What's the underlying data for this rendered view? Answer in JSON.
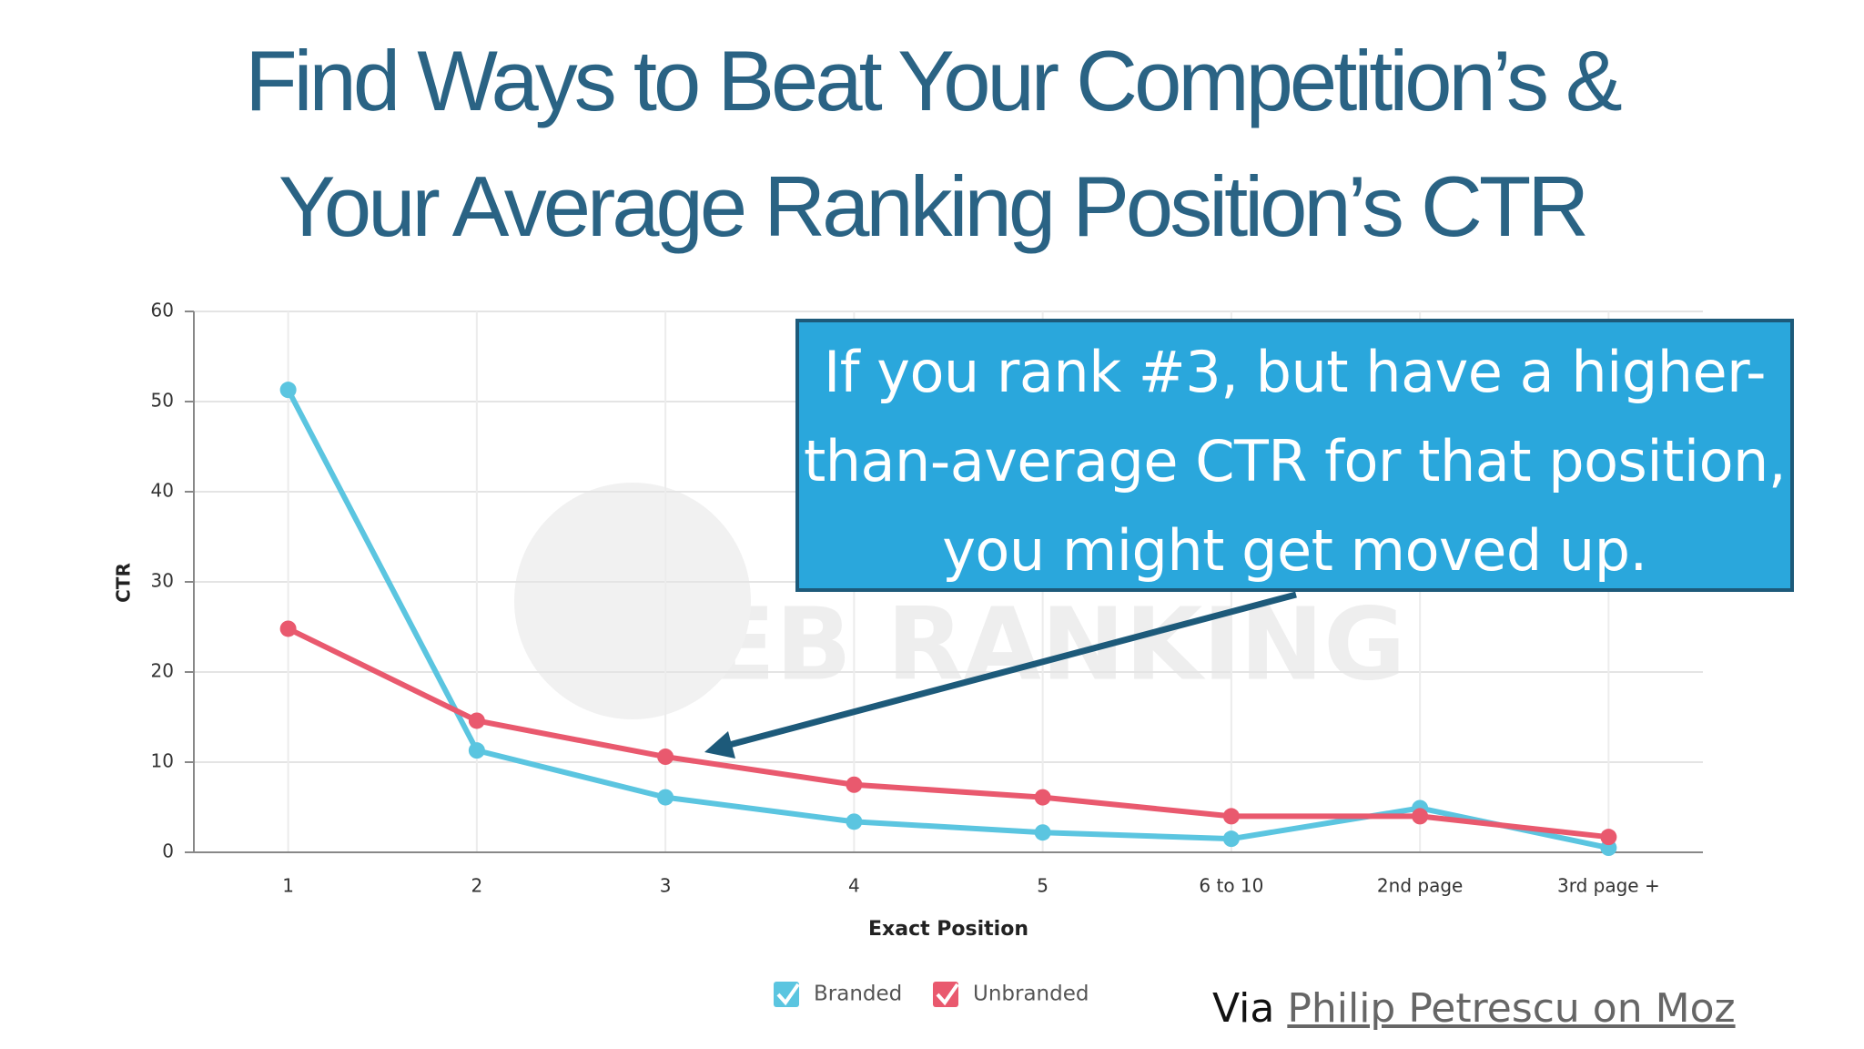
{
  "chart_data": {
    "type": "line",
    "title": "Find Ways to Beat Your Competition’s & Your Average Ranking Position’s CTR",
    "x_label": "Exact Position",
    "y_label": "CTR",
    "categories": [
      "1",
      "2",
      "3",
      "4",
      "5",
      "6 to 10",
      "2nd page",
      "3rd page +"
    ],
    "series": [
      {
        "name": "Branded",
        "color": "#5bc5e0",
        "values": [
          51.3,
          11.3,
          6.1,
          3.4,
          2.2,
          1.5,
          4.9,
          0.5
        ]
      },
      {
        "name": "Unbranded",
        "color": "#e9596e",
        "values": [
          24.8,
          14.6,
          10.6,
          7.5,
          6.1,
          4.0,
          4.0,
          1.7
        ]
      }
    ],
    "ylim": [
      0,
      60
    ],
    "yticks": [
      0,
      10,
      20,
      30,
      40,
      50,
      60
    ],
    "grid": true,
    "legend": "bottom",
    "watermark": "WEB RANKING",
    "annotation": "If you rank #3, but have a higher-than-average CTR for that position, you might get moved up.",
    "source_prefix": "Via",
    "source_link": "Philip Petrescu on Moz"
  }
}
